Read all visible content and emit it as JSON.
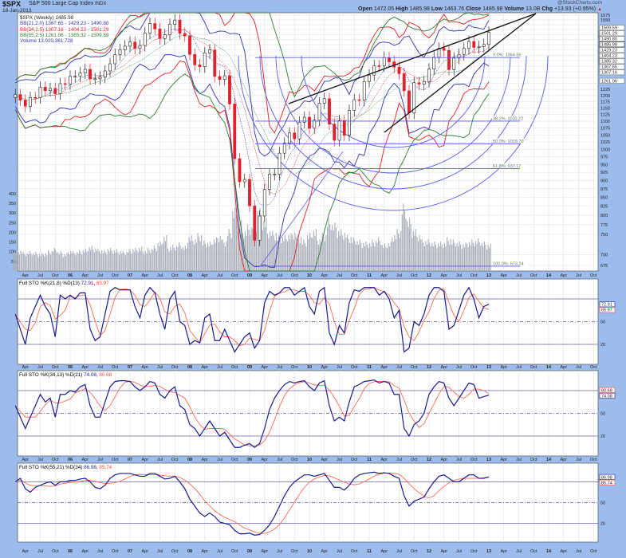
{
  "header": {
    "symbol": "$SPX",
    "name": "S&P 500 Large Cap Index",
    "exchange": "INDX",
    "date": "18-Jan-2013",
    "watermark": "@StockCharts.com",
    "open_label": "Open",
    "open": "1472.05",
    "high_label": "High",
    "high": "1485.98",
    "low_label": "Low",
    "low": "1463.76",
    "close_label": "Close",
    "close": "1485.98",
    "volume_label": "Volume",
    "volume": "13.0B",
    "chg_label": "Chg",
    "chg": "+13.93 (+0.95%)",
    "chg_arrow": "▲"
  },
  "legend": {
    "price": "$SPX (Weekly) 1485.98",
    "bb1": "BB(21,2.0) 1367.65 - 1429.23 - 1490.80",
    "bb2": "BB(34,2.5) 1307.16 - 1404.23 - 1501.29",
    "bb3": "BB(55,2.5) 1261.06 - 1385.32 - 1509.59",
    "volume": "Volume 13,020,361,728"
  },
  "colors": {
    "frame": "#9cbcee",
    "plot_bg": "#ffffff",
    "grid": "#dfe3ec",
    "up": "#222222",
    "down": "#e0202a",
    "bb1": "#3333aa",
    "bb2": "#e02020",
    "bb3": "#2f7a2f",
    "volume": "#a9adb8",
    "fib": "#5a5af0",
    "trend": "#111111",
    "k_line": "#1a1a90",
    "d_line": "#ff6a50"
  },
  "chart_data": [
    {
      "type": "candlestick",
      "title": "$SPX (Weekly)",
      "scale": "log",
      "ylim": [
        675,
        1575
      ],
      "yticks": [
        675,
        700,
        750,
        775,
        800,
        825,
        850,
        875,
        900,
        925,
        950,
        975,
        1000,
        1025,
        1050,
        1075,
        1100,
        1125,
        1150,
        1175,
        1200,
        1225,
        1250,
        1275,
        1300,
        1325,
        1350,
        1375,
        1400,
        1425,
        1450,
        1475,
        1500,
        1525,
        1550,
        1575
      ],
      "start_month": "2005-02",
      "closes": [
        1204,
        1181,
        1157,
        1192,
        1191,
        1234,
        1220,
        1229,
        1207,
        1249,
        1248,
        1280,
        1281,
        1295,
        1311,
        1270,
        1270,
        1277,
        1304,
        1336,
        1378,
        1401,
        1418,
        1438,
        1407,
        1421,
        1482,
        1531,
        1503,
        1455,
        1474,
        1527,
        1549,
        1481,
        1468,
        1379,
        1331,
        1323,
        1386,
        1400,
        1280,
        1267,
        1283,
        1166,
        969,
        896,
        903,
        826,
        735,
        798,
        873,
        919,
        919,
        987,
        1021,
        1057,
        1036,
        1096,
        1115,
        1074,
        1104,
        1169,
        1187,
        1089,
        1031,
        1102,
        1049,
        1141,
        1183,
        1181,
        1258,
        1286,
        1327,
        1326,
        1364,
        1345,
        1321,
        1292,
        1219,
        1131,
        1253,
        1247,
        1258,
        1312,
        1366,
        1408,
        1398,
        1310,
        1362,
        1379,
        1407,
        1441,
        1412,
        1416,
        1426,
        1486
      ],
      "fib_levels": [
        {
          "label": "0.0%: 1364.55",
          "value": 1364.55
        },
        {
          "label": "38.2%: 1100.22",
          "value": 1100.22
        },
        {
          "label": "50.0%: 1018.70",
          "value": 1018.7
        },
        {
          "label": "61.8%: 937.17",
          "value": 937.17
        },
        {
          "label": "100.0%: 673.24",
          "value": 673.24
        }
      ],
      "right_tags": [
        "1509.59",
        "1501.29",
        "1490.80",
        "1485.98",
        "1429.23",
        "1404.23",
        "1385.32",
        "1367.65",
        "1307.16",
        "1261.06"
      ],
      "volume": {
        "ylim": [
          0,
          450
        ],
        "yticks": [
          50,
          100,
          150,
          200,
          250,
          300,
          350,
          400
        ],
        "values": [
          95,
          100,
          90,
          95,
          90,
          85,
          90,
          100,
          110,
          95,
          85,
          100,
          95,
          100,
          105,
          120,
          115,
          105,
          100,
          110,
          105,
          100,
          95,
          105,
          110,
          115,
          100,
          110,
          120,
          140,
          170,
          120,
          125,
          135,
          120,
          170,
          160,
          180,
          145,
          140,
          160,
          175,
          150,
          200,
          300,
          240,
          200,
          220,
          240,
          300,
          250,
          200,
          190,
          170,
          170,
          180,
          190,
          170,
          150,
          180,
          200,
          160,
          180,
          250,
          230,
          200,
          190,
          170,
          160,
          150,
          140,
          140,
          150,
          160,
          130,
          140,
          180,
          200,
          320,
          250,
          200,
          180,
          150,
          150,
          140,
          140,
          140,
          160,
          150,
          140,
          135,
          145,
          150,
          155,
          140,
          130
        ]
      }
    },
    {
      "type": "line",
      "title": "Full STO %K(21,8) %D(13)",
      "k_value": "72.91",
      "d_value": "65.97",
      "ylim": [
        0,
        100
      ],
      "yticks": [
        20,
        50,
        80
      ],
      "start_month": "2005-02",
      "k": [
        60,
        40,
        20,
        55,
        70,
        85,
        70,
        60,
        30,
        85,
        80,
        85,
        80,
        88,
        88,
        40,
        25,
        30,
        60,
        90,
        95,
        92,
        92,
        92,
        70,
        55,
        85,
        95,
        88,
        60,
        40,
        80,
        90,
        50,
        45,
        20,
        25,
        22,
        55,
        60,
        25,
        25,
        40,
        25,
        10,
        20,
        30,
        35,
        15,
        25,
        75,
        90,
        85,
        88,
        95,
        95,
        85,
        90,
        95,
        70,
        60,
        90,
        95,
        35,
        20,
        45,
        35,
        75,
        92,
        90,
        95,
        95,
        95,
        85,
        90,
        80,
        55,
        65,
        10,
        15,
        50,
        45,
        60,
        85,
        95,
        95,
        90,
        40,
        45,
        65,
        85,
        95,
        80,
        55,
        70,
        73
      ]
    },
    {
      "type": "line",
      "title": "Full STO %K(34,13) %D(21)",
      "k_value": "74.08",
      "d_value": "80.68",
      "ylim": [
        0,
        100
      ],
      "yticks": [
        20,
        50,
        80
      ],
      "start_month": "2005-02",
      "k": [
        60,
        45,
        30,
        45,
        60,
        75,
        65,
        70,
        45,
        75,
        75,
        80,
        78,
        85,
        88,
        60,
        45,
        45,
        65,
        85,
        92,
        93,
        93,
        92,
        85,
        80,
        85,
        92,
        90,
        75,
        70,
        80,
        85,
        60,
        55,
        35,
        30,
        20,
        30,
        40,
        30,
        20,
        25,
        15,
        5,
        5,
        8,
        10,
        5,
        10,
        30,
        55,
        70,
        80,
        88,
        92,
        90,
        92,
        93,
        85,
        80,
        90,
        93,
        60,
        40,
        45,
        40,
        65,
        85,
        88,
        92,
        93,
        94,
        90,
        92,
        90,
        75,
        75,
        30,
        20,
        35,
        40,
        50,
        75,
        85,
        92,
        90,
        70,
        60,
        70,
        80,
        90,
        88,
        70,
        72,
        74
      ]
    },
    {
      "type": "line",
      "title": "Full STO %K(55,21) %D(34)",
      "k_value": "86.98",
      "d_value": "85.74",
      "ylim": [
        0,
        100
      ],
      "yticks": [
        20,
        50,
        80
      ],
      "start_month": "2005-02",
      "k": [
        80,
        85,
        70,
        65,
        72,
        75,
        78,
        80,
        75,
        80,
        80,
        82,
        82,
        84,
        85,
        80,
        72,
        70,
        75,
        85,
        90,
        92,
        92,
        92,
        90,
        88,
        88,
        92,
        92,
        88,
        84,
        85,
        88,
        80,
        70,
        55,
        45,
        35,
        30,
        35,
        30,
        22,
        20,
        18,
        10,
        5,
        5,
        6,
        3,
        4,
        10,
        18,
        30,
        45,
        60,
        72,
        80,
        85,
        90,
        90,
        88,
        90,
        92,
        82,
        72,
        72,
        68,
        75,
        85,
        90,
        92,
        93,
        94,
        92,
        93,
        92,
        88,
        85,
        60,
        45,
        52,
        55,
        58,
        70,
        80,
        88,
        90,
        85,
        80,
        80,
        85,
        90,
        90,
        85,
        85,
        87
      ]
    }
  ],
  "x_axis": {
    "labels": [
      "Apr",
      "Jul",
      "Oct",
      "06",
      "Apr",
      "Jul",
      "Oct",
      "07",
      "Apr",
      "Jul",
      "Oct",
      "08",
      "Apr",
      "Jul",
      "Oct",
      "09",
      "Apr",
      "Jul",
      "Oct",
      "10",
      "Apr",
      "Jul",
      "Oct",
      "11",
      "Apr",
      "Jul",
      "Oct",
      "12",
      "Apr",
      "Jul",
      "Oct",
      "13",
      "Apr",
      "Jul",
      "Oct",
      "14",
      "Apr",
      "Jul",
      "Oct"
    ]
  }
}
